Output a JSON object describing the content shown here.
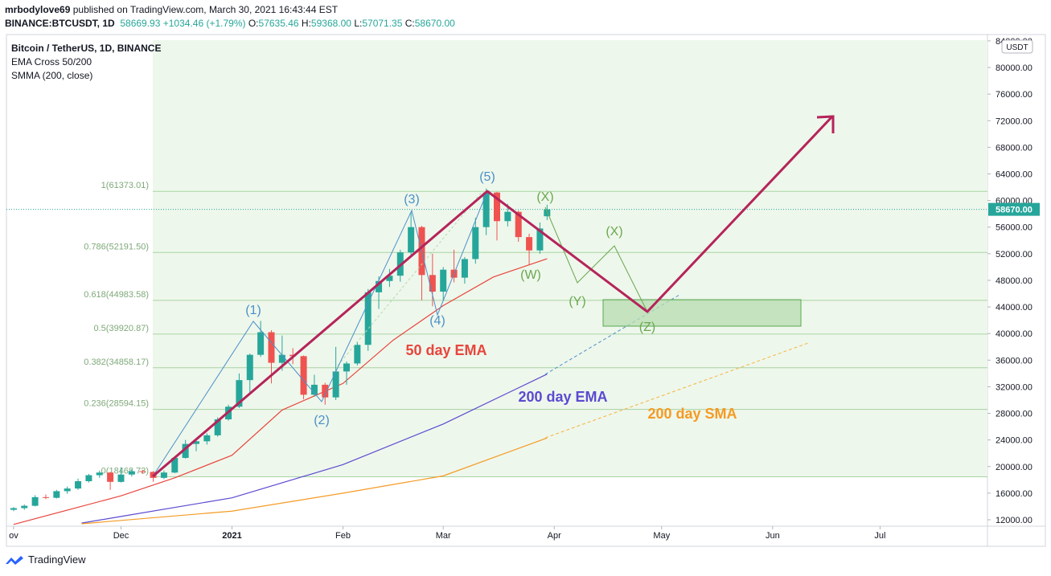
{
  "header": {
    "author": "mrbodylove69",
    "published": "published on TradingView.com, March 30, 2021 16:43:44 EST",
    "symbol": "BINANCE:BTCUSDT, 1D",
    "last": "58669.93",
    "change": "+1034.46 (+1.79%)",
    "ohlc": [
      {
        "label": "O:",
        "value": "57635.46"
      },
      {
        "label": "H:",
        "value": "59368.00"
      },
      {
        "label": "L:",
        "value": "57071.35"
      },
      {
        "label": "C:",
        "value": "58670.00"
      }
    ]
  },
  "legend": [
    "Bitcoin / TetherUS, 1D, BINANCE",
    "EMA Cross 50/200",
    "SMMA (200, close)"
  ],
  "footer": "TradingView",
  "chart_data": {
    "type": "candlestick",
    "currency": "USDT",
    "up_color": "#26a69a",
    "down_color": "#ef5350",
    "xlim": [
      "2020-10-30",
      "2021-07-31"
    ],
    "xticks": [
      {
        "value": "2020-11-01",
        "label": "ov"
      },
      {
        "value": "2020-12-01",
        "label": "Dec"
      },
      {
        "value": "2021-01-01",
        "label": "2021"
      },
      {
        "value": "2021-02-01",
        "label": "Feb"
      },
      {
        "value": "2021-03-01",
        "label": "Mar"
      },
      {
        "value": "2021-04-01",
        "label": "Apr"
      },
      {
        "value": "2021-05-01",
        "label": "May"
      },
      {
        "value": "2021-06-01",
        "label": "Jun"
      },
      {
        "value": "2021-07-01",
        "label": "Jul"
      }
    ],
    "ylim": [
      11034,
      84955
    ],
    "yticks": [
      {
        "value": 12000,
        "label": "12000.00"
      },
      {
        "value": 16000,
        "label": "16000.00"
      },
      {
        "value": 20000,
        "label": "20000.00"
      },
      {
        "value": 24000,
        "label": "24000.00"
      },
      {
        "value": 28000,
        "label": "28000.00"
      },
      {
        "value": 32000,
        "label": "32000.00"
      },
      {
        "value": 36000,
        "label": "36000.00"
      },
      {
        "value": 40000,
        "label": "40000.00"
      },
      {
        "value": 44000,
        "label": "44000.00"
      },
      {
        "value": 48000,
        "label": "48000.00"
      },
      {
        "value": 52000,
        "label": "52000.00"
      },
      {
        "value": 56000,
        "label": "56000.00"
      },
      {
        "value": 60000,
        "label": "60000.00"
      },
      {
        "value": 64000,
        "label": "64000.00"
      },
      {
        "value": 68000,
        "label": "68000.00"
      },
      {
        "value": 72000,
        "label": "72000.00"
      },
      {
        "value": 76000,
        "label": "76000.00"
      },
      {
        "value": 80000,
        "label": "80000.00"
      },
      {
        "value": 84000,
        "label": "84000.00"
      }
    ],
    "current_price": {
      "value": 58670,
      "label": "58670.00"
    },
    "x": [
      "2020-11-01",
      "2020-11-04",
      "2020-11-07",
      "2020-11-10",
      "2020-11-13",
      "2020-11-16",
      "2020-11-19",
      "2020-11-22",
      "2020-11-25",
      "2020-11-28",
      "2020-12-01",
      "2020-12-04",
      "2020-12-07",
      "2020-12-10",
      "2020-12-13",
      "2020-12-16",
      "2020-12-19",
      "2020-12-22",
      "2020-12-25",
      "2020-12-28",
      "2020-12-31",
      "2021-01-03",
      "2021-01-06",
      "2021-01-09",
      "2021-01-12",
      "2021-01-15",
      "2021-01-18",
      "2021-01-21",
      "2021-01-24",
      "2021-01-27",
      "2021-01-30",
      "2021-02-02",
      "2021-02-05",
      "2021-02-08",
      "2021-02-11",
      "2021-02-14",
      "2021-02-17",
      "2021-02-20",
      "2021-02-23",
      "2021-02-26",
      "2021-03-01",
      "2021-03-04",
      "2021-03-07",
      "2021-03-10",
      "2021-03-13",
      "2021-03-16",
      "2021-03-19",
      "2021-03-22",
      "2021-03-25",
      "2021-03-28",
      "2021-03-30"
    ],
    "open": [
      13500,
      13750,
      14100,
      15400,
      15300,
      16300,
      16700,
      17800,
      18700,
      19100,
      17700,
      18800,
      19300,
      19200,
      18300,
      19100,
      21300,
      23400,
      23800,
      24700,
      27100,
      29000,
      33000,
      36800,
      40200,
      35600,
      36800,
      36600,
      30800,
      32300,
      30400,
      34300,
      35500,
      38300,
      46200,
      47900,
      48700,
      52200,
      56000,
      48800,
      46300,
      49600,
      48400,
      51200,
      56000,
      61200,
      56900,
      58300,
      54500,
      52500,
      57635
    ],
    "high": [
      13900,
      14300,
      15700,
      15800,
      16500,
      17000,
      18200,
      18900,
      19400,
      19200,
      19900,
      19600,
      19500,
      19300,
      19400,
      21500,
      24000,
      24100,
      25000,
      27400,
      29300,
      34000,
      37000,
      41900,
      40500,
      39700,
      37800,
      36700,
      33800,
      32600,
      38000,
      35800,
      38700,
      46700,
      48600,
      49700,
      52600,
      58300,
      56200,
      52000,
      50000,
      52600,
      51500,
      57400,
      61800,
      61300,
      59500,
      58500,
      55000,
      56700,
      59368
    ],
    "low": [
      13300,
      13500,
      14000,
      15100,
      15200,
      15900,
      16500,
      17600,
      18300,
      16500,
      17600,
      18500,
      18900,
      17700,
      18100,
      19000,
      21200,
      22300,
      23300,
      24500,
      26900,
      28800,
      31000,
      36500,
      32500,
      34400,
      35400,
      30100,
      30500,
      29300,
      30000,
      32300,
      35200,
      37400,
      43700,
      47000,
      47800,
      51600,
      45000,
      44100,
      45000,
      47700,
      47500,
      50500,
      54800,
      54000,
      56100,
      53800,
      50400,
      52000,
      57071
    ],
    "close": [
      13750,
      14100,
      15400,
      15300,
      16300,
      16700,
      17800,
      18700,
      19100,
      17700,
      18800,
      19300,
      19200,
      18300,
      19100,
      21300,
      23400,
      23800,
      24700,
      27100,
      29000,
      33000,
      36800,
      40200,
      35600,
      36800,
      36600,
      30800,
      32300,
      30400,
      34300,
      35500,
      38300,
      46200,
      47900,
      48700,
      52200,
      56000,
      48800,
      46300,
      49600,
      48400,
      51200,
      56000,
      61200,
      56900,
      58300,
      54500,
      52500,
      55800,
      58670
    ],
    "series": [
      {
        "name": "50 day EMA",
        "color": "#e8453c",
        "x": [
          "2020-11-01",
          "2020-12-01",
          "2020-12-16",
          "2021-01-01",
          "2021-01-15",
          "2021-02-01",
          "2021-02-15",
          "2021-03-01",
          "2021-03-15",
          "2021-03-30"
        ],
        "values": [
          11300,
          15600,
          18300,
          21700,
          28500,
          32500,
          39000,
          44200,
          48500,
          51250
        ]
      },
      {
        "name": "200 day EMA",
        "color": "#5b4ad0",
        "x": [
          "2020-11-20",
          "2020-12-01",
          "2021-01-01",
          "2021-02-01",
          "2021-03-01",
          "2021-03-30"
        ],
        "values": [
          11500,
          12500,
          15300,
          20300,
          26400,
          33900
        ]
      },
      {
        "name": "200 day SMA",
        "color": "#f59a23",
        "x": [
          "2020-11-20",
          "2021-01-01",
          "2021-02-01",
          "2021-03-01",
          "2021-03-30"
        ],
        "values": [
          11400,
          13300,
          16000,
          18600,
          24300
        ]
      }
    ],
    "fib_levels": [
      {
        "value": 61373.01,
        "label": "1(61373.01)"
      },
      {
        "value": 52191.5,
        "label": "0.786(52191.50)"
      },
      {
        "value": 44983.58,
        "label": "0.618(44983.58)"
      },
      {
        "value": 39920.87,
        "label": "0.5(39920.87)"
      },
      {
        "value": 34858.17,
        "label": "0.382(34858.17)"
      },
      {
        "value": 28594.15,
        "label": "0.236(28594.15)"
      },
      {
        "value": 18468.73,
        "label": "0(18468.73)"
      }
    ],
    "wave_labels": {
      "impulse": [
        "(1)",
        "(2)",
        "(3)",
        "(4)",
        "(5)"
      ],
      "correction": [
        "(X)",
        "(W)",
        "(Y)",
        "(X)",
        "(Z)"
      ]
    }
  }
}
